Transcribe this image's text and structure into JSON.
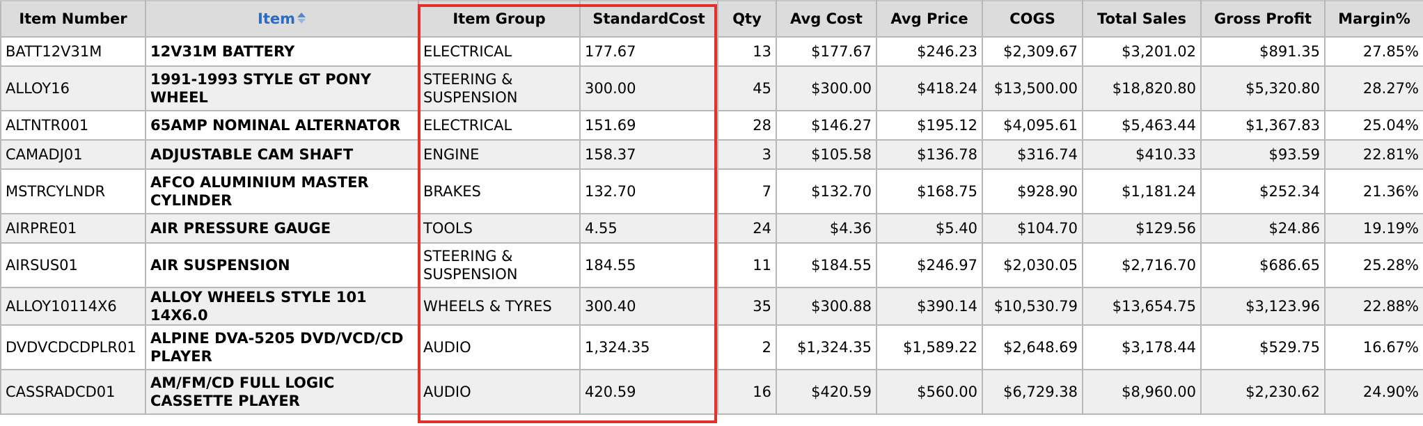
{
  "columns": {
    "item_number": "Item Number",
    "item": "Item",
    "item_group": "Item Group",
    "standard_cost": "StandardCost",
    "qty": "Qty",
    "avg_cost": "Avg Cost",
    "avg_price": "Avg Price",
    "cogs": "COGS",
    "total_sales": "Total Sales",
    "gross_profit": "Gross Profit",
    "margin": "Margin%"
  },
  "sort_icon": "sort-up-down-icon",
  "highlight_color": "#e2312d",
  "link_color": "#2a6bc9",
  "rows": [
    {
      "num": "BATT12V31M",
      "desc": "12V31M BATTERY",
      "group": "ELECTRICAL",
      "std": "177.67",
      "qty": "13",
      "avgcost": "$177.67",
      "avgprice": "$246.23",
      "cogs": "$2,309.67",
      "sales": "$3,201.02",
      "profit": "$891.35",
      "margin": "27.85%"
    },
    {
      "num": "ALLOY16",
      "desc": "1991-1993 STYLE GT PONY WHEEL",
      "group": "STEERING & SUSPENSION",
      "std": "300.00",
      "qty": "45",
      "avgcost": "$300.00",
      "avgprice": "$418.24",
      "cogs": "$13,500.00",
      "sales": "$18,820.80",
      "profit": "$5,320.80",
      "margin": "28.27%"
    },
    {
      "num": "ALTNTR001",
      "desc": "65AMP NOMINAL ALTERNATOR",
      "group": "ELECTRICAL",
      "std": "151.69",
      "qty": "28",
      "avgcost": "$146.27",
      "avgprice": "$195.12",
      "cogs": "$4,095.61",
      "sales": "$5,463.44",
      "profit": "$1,367.83",
      "margin": "25.04%"
    },
    {
      "num": "CAMADJ01",
      "desc": "ADJUSTABLE CAM SHAFT",
      "group": "ENGINE",
      "std": "158.37",
      "qty": "3",
      "avgcost": "$105.58",
      "avgprice": "$136.78",
      "cogs": "$316.74",
      "sales": "$410.33",
      "profit": "$93.59",
      "margin": "22.81%"
    },
    {
      "num": "MSTRCYLNDR",
      "desc": "AFCO ALUMINIUM MASTER CYLINDER",
      "group": "BRAKES",
      "std": "132.70",
      "qty": "7",
      "avgcost": "$132.70",
      "avgprice": "$168.75",
      "cogs": "$928.90",
      "sales": "$1,181.24",
      "profit": "$252.34",
      "margin": "21.36%"
    },
    {
      "num": "AIRPRE01",
      "desc": "AIR PRESSURE GAUGE",
      "group": "TOOLS",
      "std": "4.55",
      "qty": "24",
      "avgcost": "$4.36",
      "avgprice": "$5.40",
      "cogs": "$104.70",
      "sales": "$129.56",
      "profit": "$24.86",
      "margin": "19.19%"
    },
    {
      "num": "AIRSUS01",
      "desc": "AIR SUSPENSION",
      "group": "STEERING & SUSPENSION",
      "std": "184.55",
      "qty": "11",
      "avgcost": "$184.55",
      "avgprice": "$246.97",
      "cogs": "$2,030.05",
      "sales": "$2,716.70",
      "profit": "$686.65",
      "margin": "25.28%"
    },
    {
      "num": "ALLOY10114X6",
      "desc": "ALLOY WHEELS STYLE 101 14X6.0",
      "group": "WHEELS & TYRES",
      "std": "300.40",
      "qty": "35",
      "avgcost": "$300.88",
      "avgprice": "$390.14",
      "cogs": "$10,530.79",
      "sales": "$13,654.75",
      "profit": "$3,123.96",
      "margin": "22.88%"
    },
    {
      "num": "DVDVCDCDPLR01",
      "desc": "ALPINE DVA-5205 DVD/VCD/CD PLAYER",
      "group": "AUDIO",
      "std": "1,324.35",
      "qty": "2",
      "avgcost": "$1,324.35",
      "avgprice": "$1,589.22",
      "cogs": "$2,648.69",
      "sales": "$3,178.44",
      "profit": "$529.75",
      "margin": "16.67%"
    },
    {
      "num": "CASSRADCD01",
      "desc": "AM/FM/CD FULL LOGIC CASSETTE PLAYER",
      "group": "AUDIO",
      "std": "420.59",
      "qty": "16",
      "avgcost": "$420.59",
      "avgprice": "$560.00",
      "cogs": "$6,729.38",
      "sales": "$8,960.00",
      "profit": "$2,230.62",
      "margin": "24.90%"
    }
  ]
}
